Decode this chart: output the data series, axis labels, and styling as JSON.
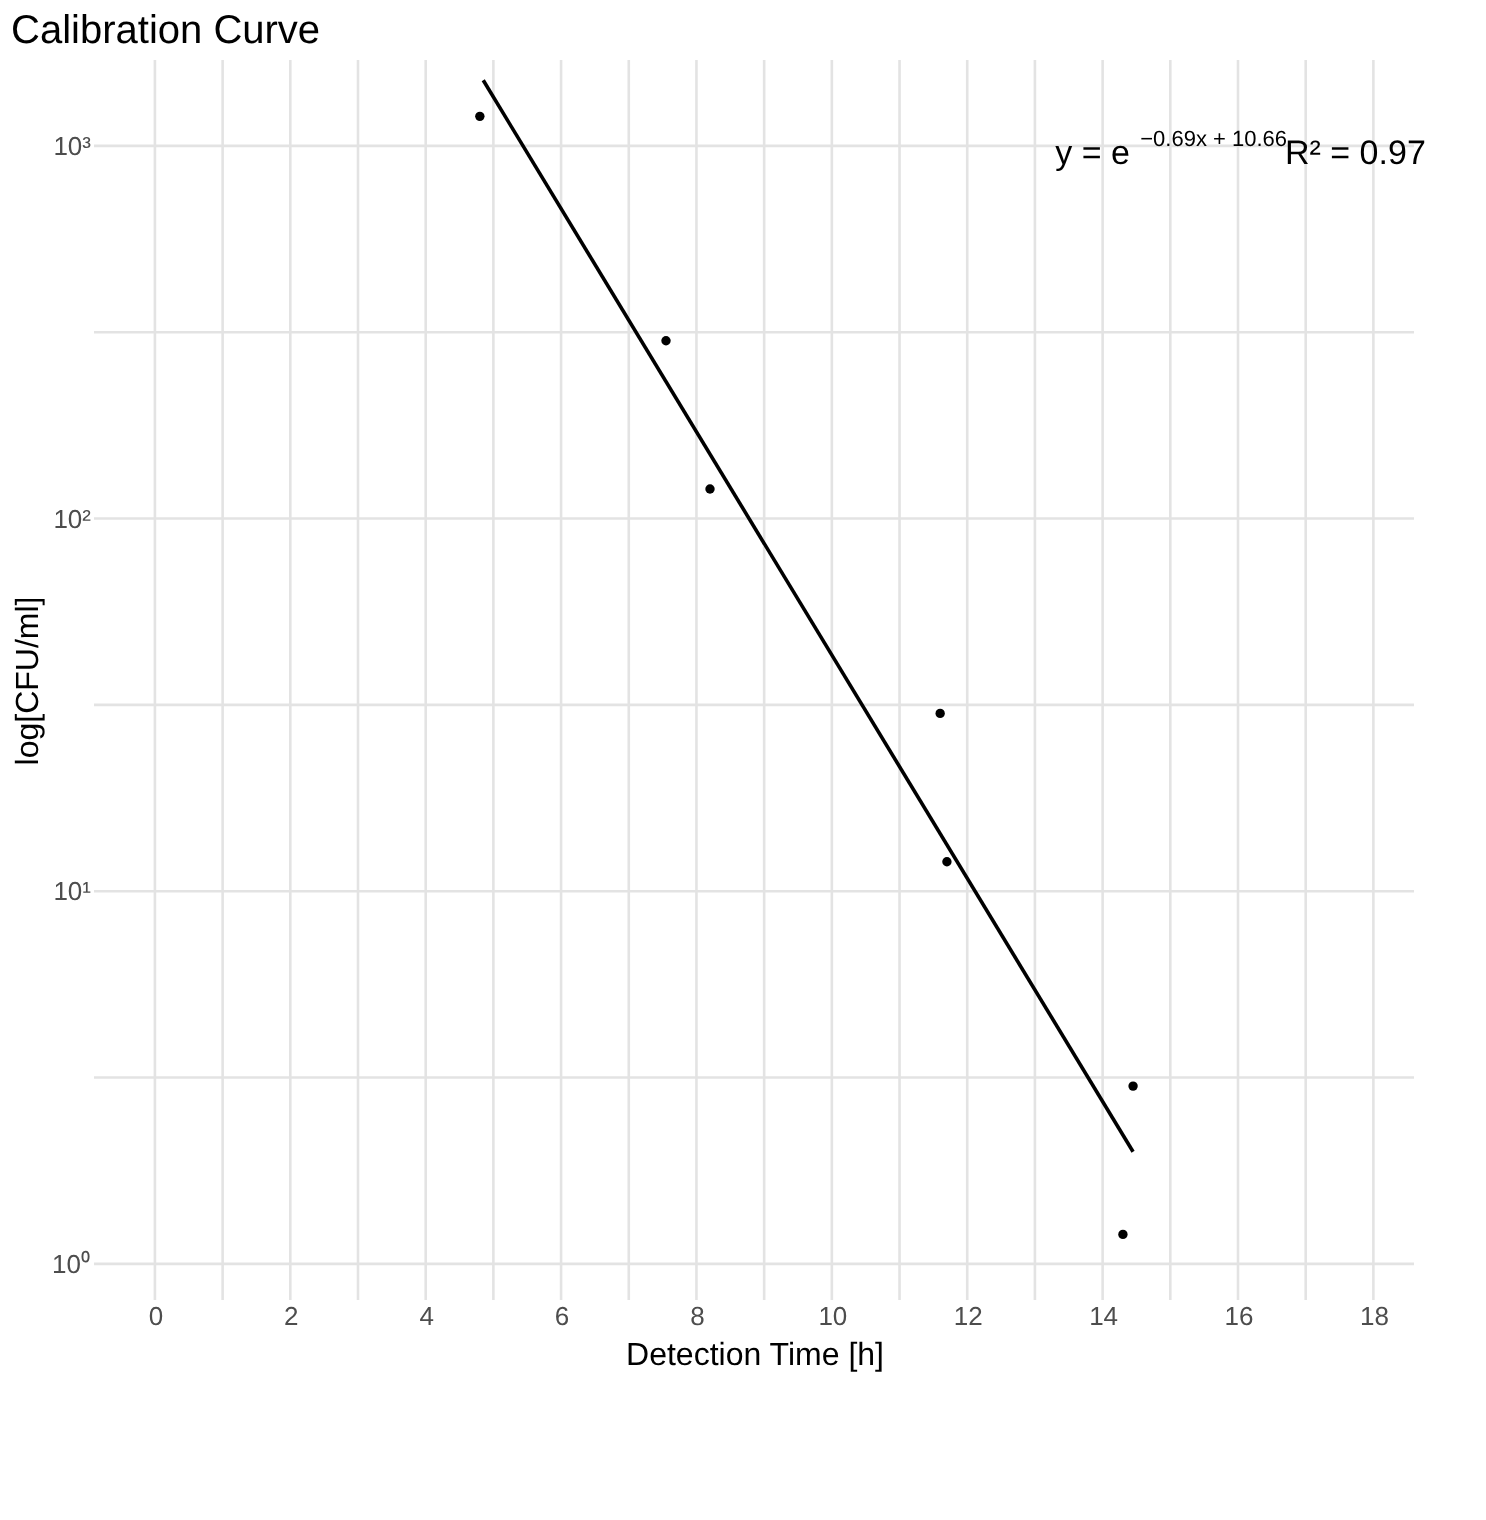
{
  "chart_data": {
    "type": "scatter",
    "title": "Calibration Curve",
    "xlabel": "Detection Time [h]",
    "ylabel": "log[CFU/ml]",
    "annotations": [
      "y = e$^{−0.69x + 10.66}$R² = 0.97"
    ],
    "log": "y",
    "grid": true,
    "xlim": [
      -0.9,
      18.6
    ],
    "ylim": [
      0.8,
      1700
    ],
    "xticks": [
      0,
      {
        "value": 1,
        "label": null
      },
      2,
      {
        "value": 3,
        "label": null
      },
      4,
      {
        "value": 5,
        "label": null
      },
      6,
      {
        "value": 7,
        "label": null
      },
      8,
      {
        "value": 9,
        "label": null
      },
      10,
      {
        "value": 11,
        "label": null
      },
      12,
      {
        "value": 13,
        "label": null
      },
      14,
      {
        "value": 15,
        "label": null
      },
      16,
      {
        "value": 17,
        "label": null
      },
      18
    ],
    "yticks": [
      {
        "value": 1,
        "label": "10⁰"
      },
      {
        "value": 3.162,
        "label": null
      },
      {
        "value": 10,
        "label": "10¹"
      },
      {
        "value": 31.62,
        "label": null
      },
      {
        "value": 100,
        "label": "10²"
      },
      {
        "value": 316.2,
        "label": null
      },
      {
        "value": 1000,
        "label": "10³"
      }
    ],
    "series": [
      {
        "marker": "circle",
        "color": "#000000",
        "x": [
          4.8,
          7.55,
          8.2,
          11.6,
          11.7,
          14.3,
          14.45
        ],
        "values": [
          1200,
          300,
          120,
          30,
          12,
          1.2,
          3
        ]
      },
      {
        "type": "line",
        "color": "#000000",
        "line_style": "solid",
        "marker": "none",
        "x": [
          4.85,
          14.45
        ],
        "values": [
          1500,
          2.0
        ]
      }
    ]
  }
}
